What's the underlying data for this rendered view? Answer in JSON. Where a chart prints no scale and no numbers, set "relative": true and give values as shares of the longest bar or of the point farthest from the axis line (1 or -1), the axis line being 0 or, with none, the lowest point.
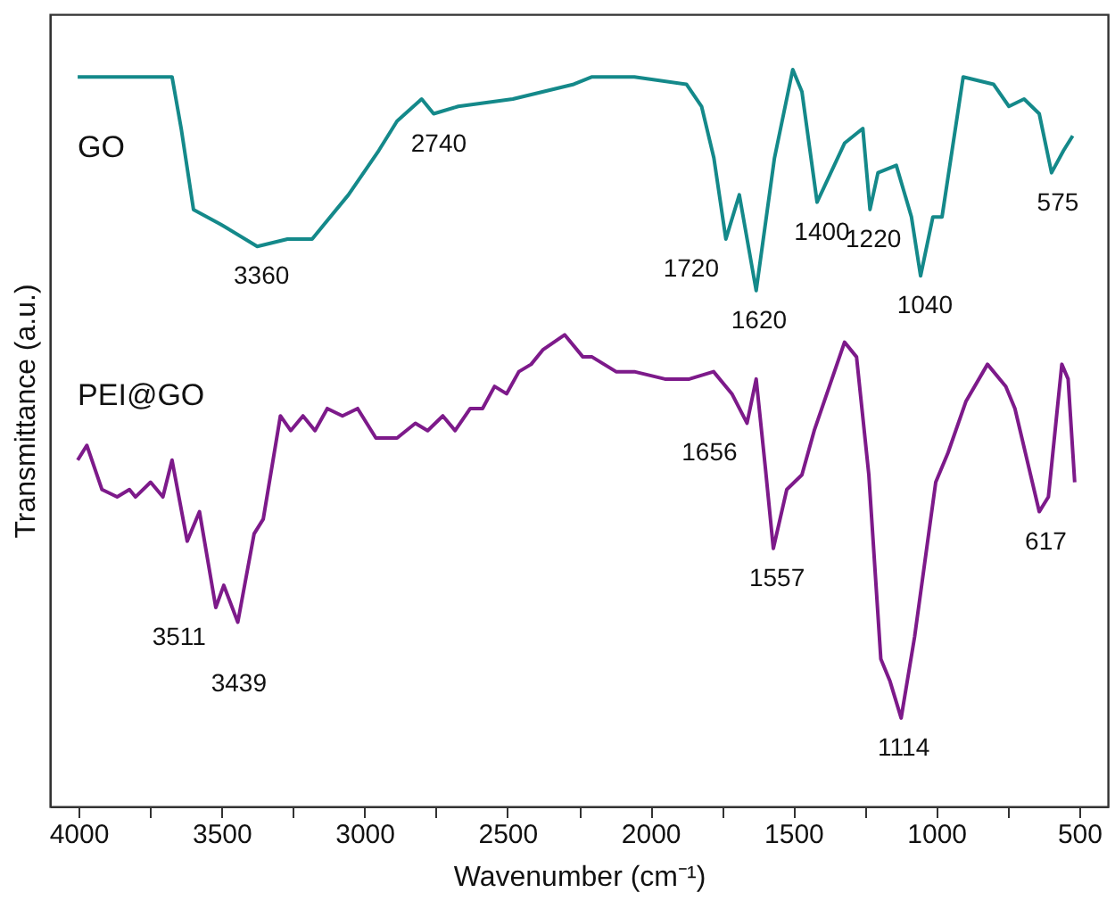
{
  "chart_data": {
    "type": "line",
    "xlabel": "Wavenumber (cm⁻¹)",
    "ylabel": "Transmittance (a.u.)",
    "relative": true,
    "legend": false,
    "grid": false,
    "marker": "none",
    "line_style": "solid",
    "xlim": [
      4100,
      400
    ],
    "xticks": [
      4000,
      {
        "value": 3750,
        "label": null
      },
      3500,
      {
        "value": 3250,
        "label": null
      },
      3000,
      {
        "value": 2750,
        "label": null
      },
      2500,
      {
        "value": 2250,
        "label": null
      },
      2000,
      {
        "value": 1750,
        "label": null
      },
      1500,
      {
        "value": 1250,
        "label": null
      },
      1000,
      {
        "value": 750,
        "label": null
      },
      500
    ],
    "series": [
      {
        "name": "GO",
        "color": "#14898a",
        "x": [
          4003,
          3694,
          3673,
          3641,
          3598,
          3503,
          3375,
          3269,
          3183,
          3056,
          2950,
          2886,
          2800,
          2758,
          2672,
          2481,
          2268,
          2204,
          2056,
          1874,
          1821,
          1778,
          1736,
          1689,
          1630,
          1566,
          1502,
          1470,
          1417,
          1321,
          1257,
          1232,
          1204,
          1140,
          1087,
          1055,
          1012,
          980,
          906,
          800,
          746,
          693,
          640,
          597,
          555,
          523
        ],
        "values": [
          0.99,
          0.99,
          0.99,
          0.92,
          0.81,
          0.79,
          0.76,
          0.77,
          0.77,
          0.83,
          0.89,
          0.93,
          0.96,
          0.94,
          0.95,
          0.96,
          0.98,
          0.99,
          0.99,
          0.98,
          0.95,
          0.88,
          0.77,
          0.83,
          0.7,
          0.88,
          1.0,
          0.97,
          0.82,
          0.9,
          0.92,
          0.81,
          0.86,
          0.87,
          0.8,
          0.72,
          0.8,
          0.8,
          0.99,
          0.98,
          0.95,
          0.96,
          0.94,
          0.86,
          0.89,
          0.91
        ]
      },
      {
        "name": "PEI@GO",
        "color": "#7d1a8a",
        "x": [
          4003,
          3971,
          3918,
          3865,
          3822,
          3801,
          3748,
          3705,
          3673,
          3620,
          3577,
          3520,
          3492,
          3443,
          3386,
          3354,
          3294,
          3258,
          3215,
          3173,
          3130,
          3077,
          3024,
          2960,
          2886,
          2822,
          2779,
          2726,
          2683,
          2630,
          2587,
          2545,
          2503,
          2460,
          2417,
          2375,
          2300,
          2236,
          2204,
          2120,
          2056,
          1949,
          1864,
          1779,
          1715,
          1662,
          1630,
          1598,
          1570,
          1523,
          1470,
          1427,
          1374,
          1321,
          1279,
          1236,
          1194,
          1162,
          1123,
          1076,
          1002,
          959,
          896,
          821,
          757,
          725,
          640,
          608,
          561,
          539,
          516
        ],
        "values": [
          0.47,
          0.49,
          0.43,
          0.42,
          0.43,
          0.42,
          0.44,
          0.42,
          0.47,
          0.36,
          0.4,
          0.27,
          0.3,
          0.25,
          0.37,
          0.39,
          0.53,
          0.51,
          0.53,
          0.51,
          0.54,
          0.53,
          0.54,
          0.5,
          0.5,
          0.52,
          0.51,
          0.53,
          0.51,
          0.54,
          0.54,
          0.57,
          0.56,
          0.59,
          0.6,
          0.62,
          0.64,
          0.61,
          0.61,
          0.59,
          0.59,
          0.58,
          0.58,
          0.59,
          0.56,
          0.52,
          0.58,
          0.46,
          0.35,
          0.43,
          0.45,
          0.51,
          0.57,
          0.63,
          0.61,
          0.45,
          0.2,
          0.17,
          0.12,
          0.23,
          0.44,
          0.48,
          0.55,
          0.6,
          0.57,
          0.54,
          0.4,
          0.42,
          0.6,
          0.58,
          0.44
        ]
      }
    ],
    "annotations": [
      {
        "text": "3360",
        "x": 3360,
        "y": 0.76
      },
      {
        "text": "2740",
        "x": 2740,
        "y": 0.94
      },
      {
        "text": "1720",
        "x": 1720,
        "y": 0.77
      },
      {
        "text": "1620",
        "x": 1620,
        "y": 0.7
      },
      {
        "text": "1400",
        "x": 1400,
        "y": 0.82
      },
      {
        "text": "1220",
        "x": 1220,
        "y": 0.81
      },
      {
        "text": "1040",
        "x": 1040,
        "y": 0.72
      },
      {
        "text": "575",
        "x": 575,
        "y": 0.86
      },
      {
        "text": "3511",
        "x": 3511,
        "y": 0.27
      },
      {
        "text": "3439",
        "x": 3439,
        "y": 0.25
      },
      {
        "text": "1656",
        "x": 1656,
        "y": 0.52
      },
      {
        "text": "1557",
        "x": 1557,
        "y": 0.35
      },
      {
        "text": "1114",
        "x": 1114,
        "y": 0.12
      },
      {
        "text": "617",
        "x": 617,
        "y": 0.4
      }
    ]
  }
}
